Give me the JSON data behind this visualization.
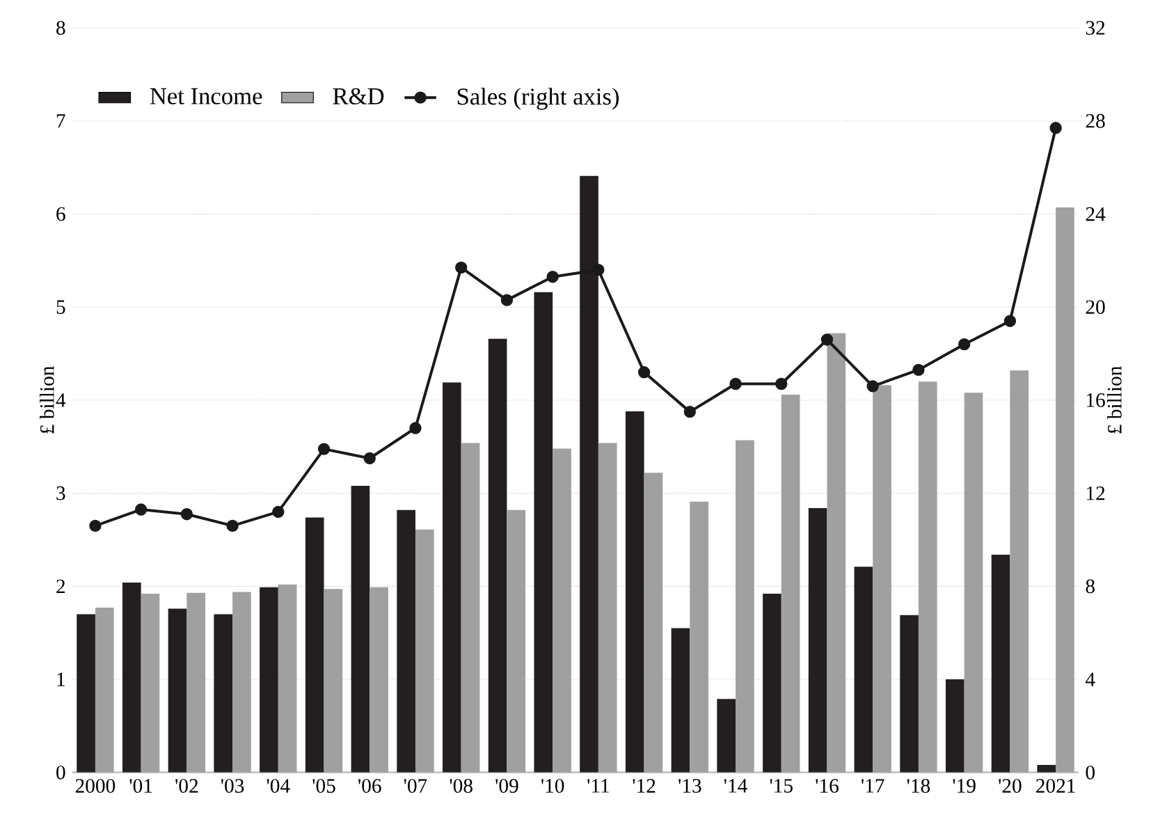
{
  "chart_data": {
    "type": "bar",
    "ylabel": "£ billion",
    "y2label": "£ billion",
    "categories": [
      "2000",
      "'01",
      "'02",
      "'03",
      "'04",
      "'05",
      "'06",
      "'07",
      "'08",
      "'09",
      "'10",
      "'11",
      "'12",
      "'13",
      "'14",
      "'15",
      "'16",
      "'17",
      "'18",
      "'19",
      "'20",
      "2021"
    ],
    "series": [
      {
        "name": "Net Income",
        "color": "#231f20",
        "values": [
          1.7,
          2.04,
          1.76,
          1.7,
          1.99,
          2.74,
          3.08,
          2.82,
          4.19,
          4.66,
          5.16,
          6.41,
          3.88,
          1.55,
          0.79,
          1.92,
          2.84,
          2.21,
          1.69,
          1.0,
          2.34,
          0.08
        ]
      },
      {
        "name": "R&D",
        "color": "#a0a0a0",
        "values": [
          1.77,
          1.92,
          1.93,
          1.94,
          2.02,
          1.97,
          1.99,
          2.61,
          3.54,
          2.82,
          3.48,
          3.54,
          3.22,
          2.91,
          3.57,
          4.06,
          4.72,
          4.16,
          4.2,
          4.08,
          4.32,
          6.07
        ]
      },
      {
        "name": "Sales (right axis)",
        "type": "line",
        "axis": "y2",
        "color": "#1a1a1a",
        "marker": "circle",
        "values": [
          10.6,
          11.3,
          11.1,
          10.6,
          11.2,
          13.9,
          13.5,
          14.8,
          21.7,
          20.3,
          21.3,
          21.6,
          17.2,
          15.5,
          16.7,
          16.7,
          18.6,
          16.6,
          17.3,
          18.4,
          19.4,
          27.7
        ]
      }
    ],
    "ylim": [
      0,
      8
    ],
    "yticks": [
      0,
      1,
      2,
      3,
      4,
      5,
      6,
      7,
      8
    ],
    "y2lim": [
      0,
      32
    ],
    "y2ticks": [
      0,
      4,
      8,
      12,
      16,
      20,
      24,
      28,
      32
    ],
    "grid": "y",
    "legend": "top left"
  }
}
